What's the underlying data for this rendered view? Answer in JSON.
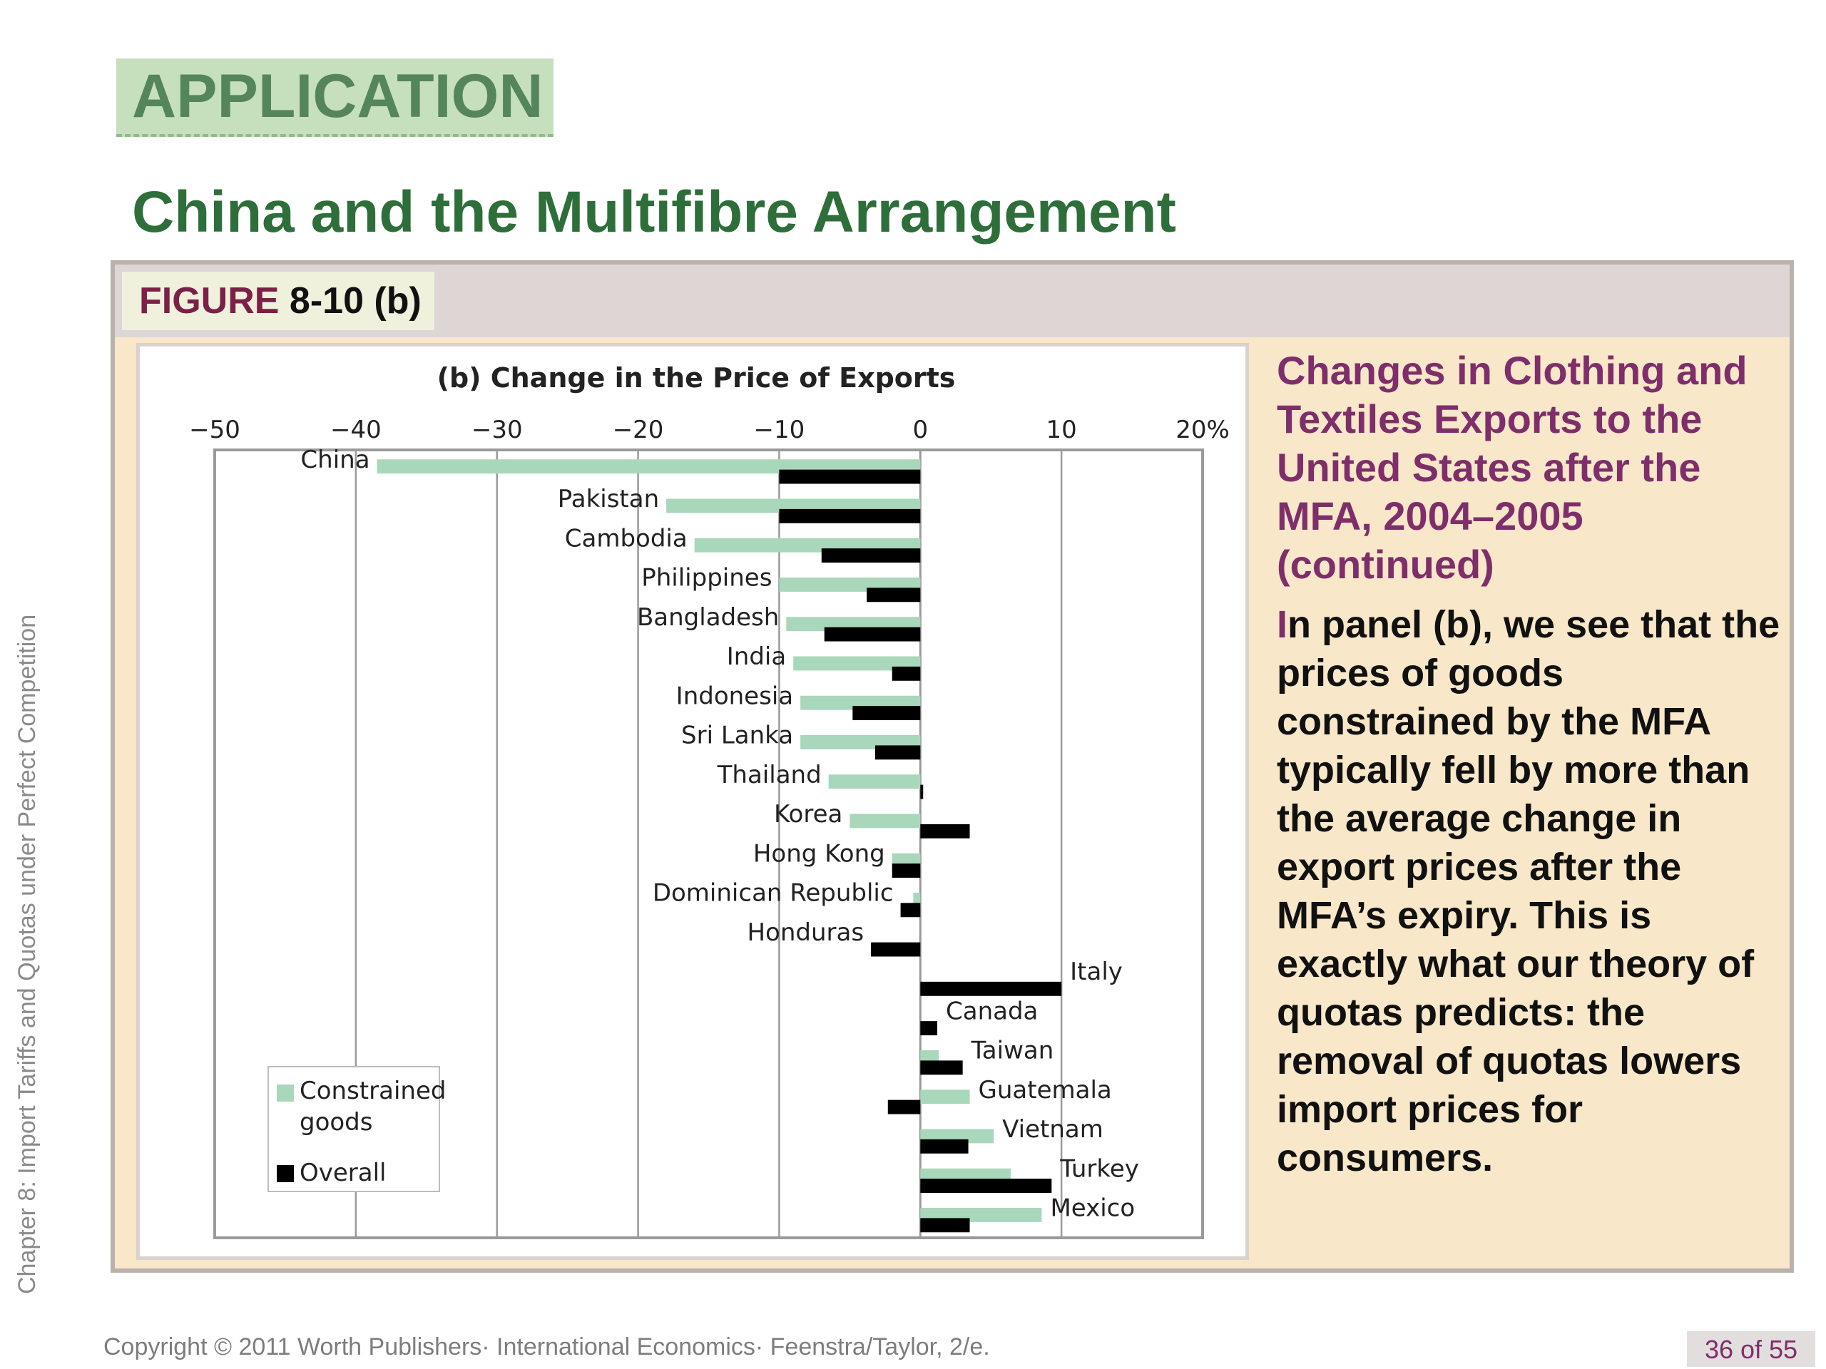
{
  "side_text": "Chapter 8:  Import Tariffs and Quotas under Perfect Competition",
  "application_label": "APPLICATION",
  "page_title": "China and the Multifibre Arrangement",
  "figure": {
    "word": "FIGURE",
    "number": "8-10 (b)"
  },
  "caption": {
    "title": "Changes in Clothing and Textiles Exports to the United States after the MFA, 2004–2005 (continued)",
    "body_first_letter": "I",
    "body_rest": "n panel (b), we see that the prices of goods constrained by the MFA typically fell by more than the average change in export prices after the MFA’s expiry. This is exactly what our theory of quotas predicts: the removal of quotas lowers import prices for consumers."
  },
  "footer": {
    "copyright": "Copyright © 2011 Worth Publishers· International Economics· Feenstra/Taylor, 2/e.",
    "page": "36 of 55"
  },
  "colors": {
    "constrained": "#a9d7bb",
    "overall": "#000000",
    "caption_title": "#7e2e6b",
    "title_green": "#2e6e3a"
  },
  "chart_data": {
    "type": "bar",
    "orientation": "horizontal",
    "title": "(b) Change in the Price of Exports",
    "xlim": [
      -50,
      20
    ],
    "xticks": [
      -50,
      -40,
      -30,
      -20,
      -10,
      0,
      10,
      20
    ],
    "xtick_labels": [
      "−50",
      "−40",
      "−30",
      "−20",
      "−10",
      "0",
      "10",
      "20%"
    ],
    "grid": true,
    "legend_position": "bottom-left",
    "categories": [
      "China",
      "Pakistan",
      "Cambodia",
      "Philippines",
      "Bangladesh",
      "India",
      "Indonesia",
      "Sri Lanka",
      "Thailand",
      "Korea",
      "Hong Kong",
      "Dominican Republic",
      "Honduras",
      "Italy",
      "Canada",
      "Taiwan",
      "Guatemala",
      "Vietnam",
      "Turkey",
      "Mexico"
    ],
    "series": [
      {
        "name": "Constrained goods",
        "values": [
          -38.5,
          -18,
          -16,
          -10,
          -9.5,
          -9,
          -8.5,
          -8.5,
          -6.5,
          -5,
          -2,
          -0.5,
          0,
          0,
          0,
          1.3,
          3.5,
          5.2,
          6.4,
          8.6
        ]
      },
      {
        "name": "Overall",
        "values": [
          -10,
          -10,
          -7,
          -3.8,
          -6.8,
          -2,
          -4.8,
          -3.2,
          0.2,
          3.5,
          -2,
          -1.4,
          -3.5,
          10,
          1.2,
          3,
          -2.3,
          3.4,
          9.3,
          3.5
        ]
      }
    ]
  }
}
